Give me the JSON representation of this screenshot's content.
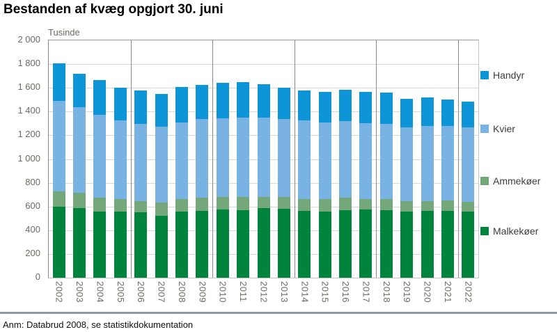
{
  "page": {
    "title": "Bestanden af kvæg opgjort 30. juni",
    "note": "Anm: Databrud 2008, se statistikdokumentation"
  },
  "chart_data": {
    "type": "bar",
    "stacked": true,
    "title": "Bestanden af kvæg opgjort 30. juni",
    "unit_label": "Tusinde",
    "ylim": [
      0,
      2000
    ],
    "ytick_step": 200,
    "y_tick_labels": [
      "2 000",
      "1 800",
      "1 600",
      "1 400",
      "1 200",
      "1 000",
      "800",
      "600",
      "400",
      "200",
      "0"
    ],
    "grid": "horizontal",
    "legend_position": "right",
    "categories": [
      "2002",
      "2003",
      "2004",
      "2005",
      "2006",
      "2007",
      "2008",
      "2009",
      "2010",
      "2011",
      "2012",
      "2013",
      "2014",
      "2015",
      "2016",
      "2017",
      "2018",
      "2019",
      "2020",
      "2021",
      "2022"
    ],
    "series": [
      {
        "name": "Malkekøer",
        "color": "#00843d",
        "values": [
          600,
          585,
          560,
          555,
          550,
          525,
          555,
          565,
          575,
          570,
          585,
          580,
          565,
          555,
          570,
          575,
          570,
          560,
          565,
          565,
          555
        ]
      },
      {
        "name": "Ammekøer",
        "color": "#74a87a",
        "values": [
          125,
          130,
          115,
          110,
          95,
          110,
          110,
          110,
          105,
          110,
          95,
          100,
          100,
          105,
          105,
          90,
          95,
          85,
          82,
          88,
          82
        ]
      },
      {
        "name": "Kvier",
        "color": "#79b3e3",
        "values": [
          765,
          720,
          700,
          660,
          650,
          640,
          645,
          660,
          665,
          670,
          670,
          655,
          660,
          650,
          645,
          635,
          630,
          620,
          630,
          625,
          628
        ]
      },
      {
        "name": "Handyr",
        "color": "#0d95d8",
        "values": [
          315,
          285,
          290,
          275,
          280,
          275,
          295,
          290,
          300,
          300,
          280,
          265,
          255,
          255,
          265,
          265,
          265,
          245,
          243,
          225,
          220
        ]
      }
    ],
    "legend_order_top_to_bottom": [
      "Handyr",
      "Kvier",
      "Ammekøer",
      "Malkekøer"
    ],
    "separator_after_index": [
      3,
      7,
      11,
      15,
      19
    ]
  }
}
